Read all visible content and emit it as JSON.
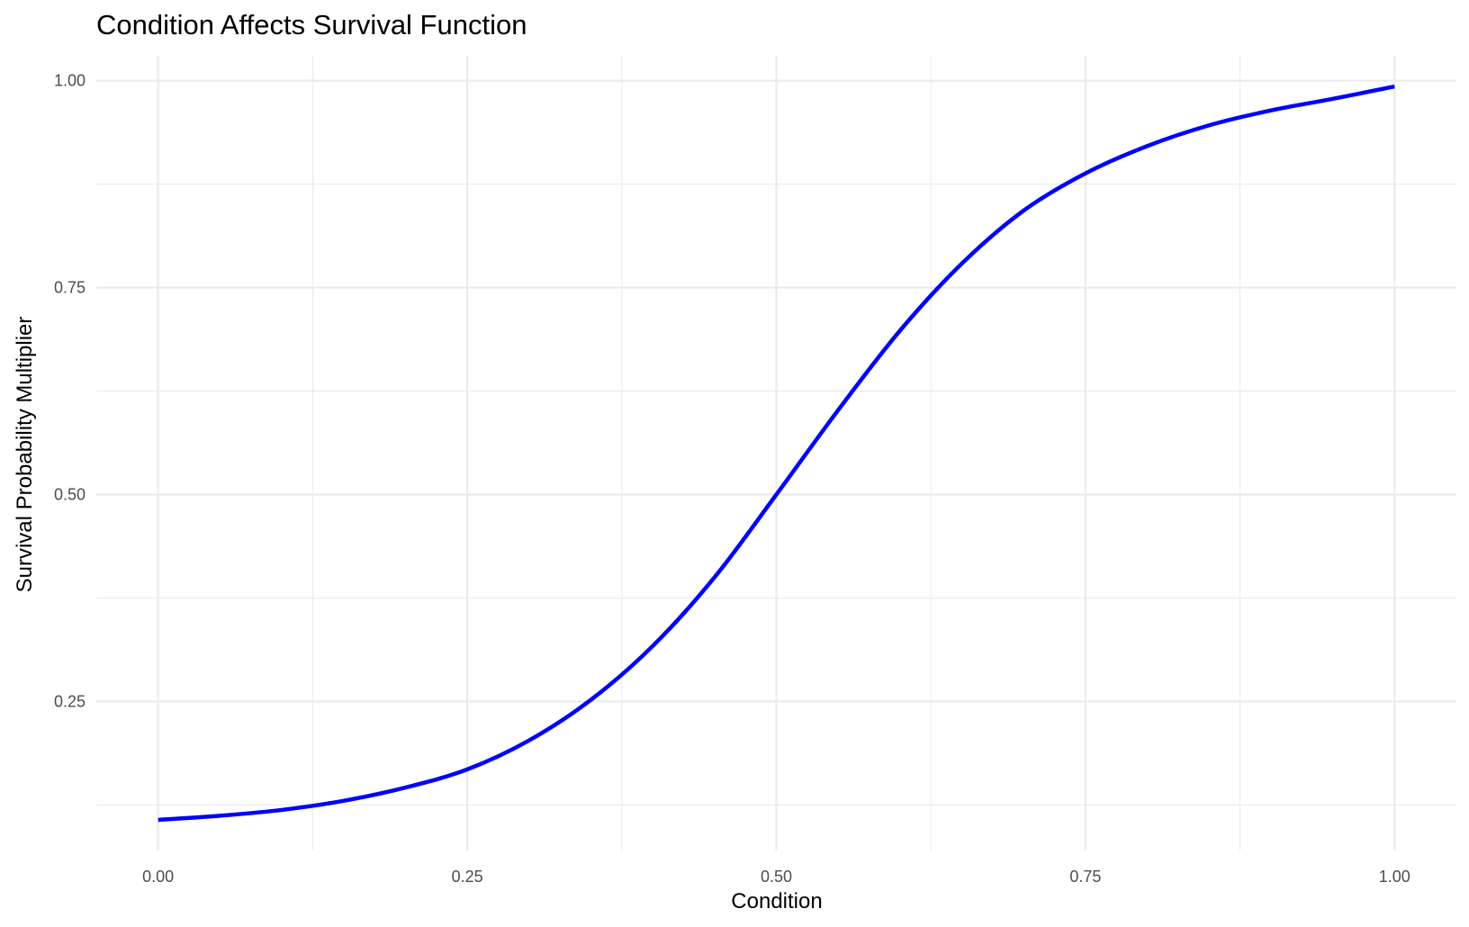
{
  "chart_data": {
    "type": "line",
    "title": "Condition Affects Survival Function",
    "xlabel": "Condition",
    "ylabel": "Survival Probability Multiplier",
    "xlim": [
      -0.05,
      1.05
    ],
    "ylim": [
      0.07,
      1.03
    ],
    "x_ticks": [
      0.0,
      0.25,
      0.5,
      0.75,
      1.0
    ],
    "x_tick_labels": [
      "0.00",
      "0.25",
      "0.50",
      "0.75",
      "1.00"
    ],
    "y_ticks": [
      0.25,
      0.5,
      0.75,
      1.0
    ],
    "y_tick_labels": [
      "0.25",
      "0.50",
      "0.75",
      "1.00"
    ],
    "x_minor_ticks": [
      0.125,
      0.375,
      0.625,
      0.875
    ],
    "y_minor_ticks": [
      0.125,
      0.375,
      0.625,
      0.875
    ],
    "grid": true,
    "line_color": "#0000ff",
    "series": [
      {
        "x": [
          0.0,
          0.05,
          0.1,
          0.15,
          0.2,
          0.25,
          0.3,
          0.35,
          0.4,
          0.45,
          0.5,
          0.55,
          0.6,
          0.65,
          0.7,
          0.75,
          0.8,
          0.85,
          0.9,
          0.95,
          1.0
        ],
        "values": [
          0.107,
          0.112,
          0.119,
          0.13,
          0.146,
          0.168,
          0.203,
          0.252,
          0.317,
          0.4,
          0.5,
          0.602,
          0.698,
          0.779,
          0.843,
          0.888,
          0.921,
          0.946,
          0.964,
          0.978,
          0.993
        ]
      }
    ]
  }
}
